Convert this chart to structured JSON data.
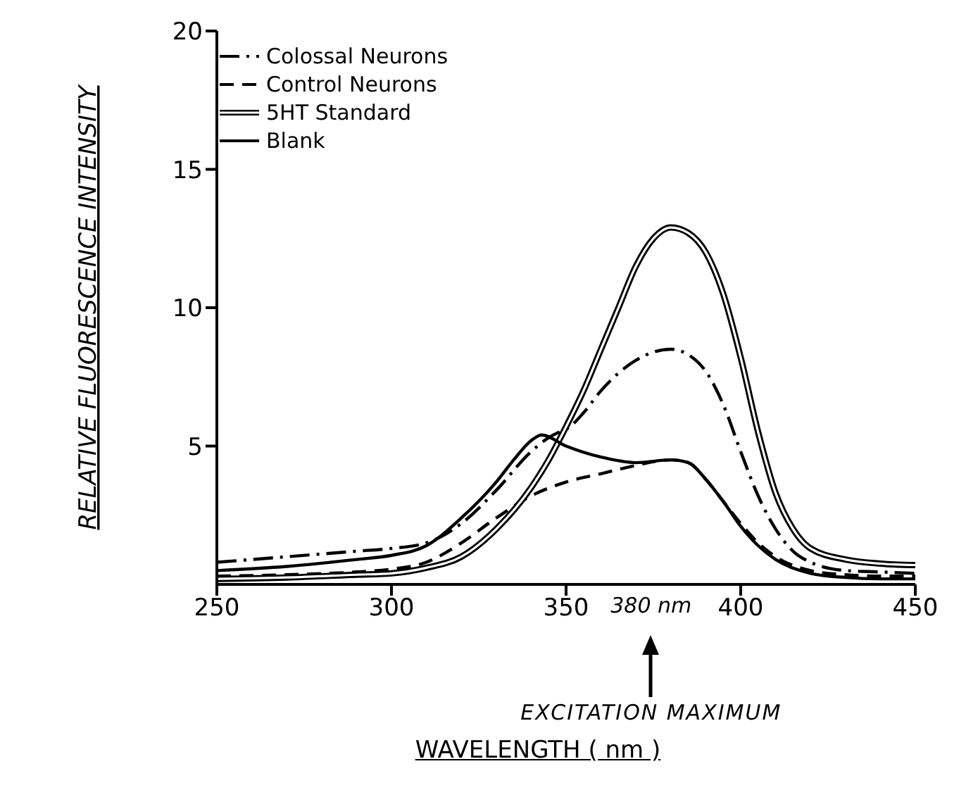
{
  "chart_data": {
    "type": "line",
    "xlabel": "WAVELENGTH ( nm )",
    "ylabel": "RELATIVE FLUORESCENCE INTENSITY",
    "xlim": [
      250,
      450
    ],
    "xticks": [
      250,
      300,
      350,
      400,
      450
    ],
    "ylim": [
      0,
      20
    ],
    "yticks": [
      5,
      10,
      15,
      20
    ],
    "legend": "top left",
    "grid": false,
    "marker": "none",
    "annotations": [
      "380 nm",
      "EXCITATION MAXIMUM"
    ],
    "series": [
      {
        "name": "Colossal Neurons",
        "color": "#000000",
        "line_style": "dashdot",
        "x": [
          250,
          270,
          290,
          300,
          310,
          320,
          330,
          340,
          345,
          348,
          350,
          355,
          360,
          370,
          380,
          385,
          390,
          395,
          400,
          405,
          410,
          415,
          420,
          430,
          440,
          450
        ],
        "values": [
          0.8,
          1.0,
          1.2,
          1.3,
          1.5,
          2.2,
          3.4,
          4.8,
          5.3,
          5.5,
          5.6,
          6.2,
          7.0,
          8.1,
          8.5,
          8.3,
          7.7,
          6.5,
          4.8,
          3.2,
          2.0,
          1.2,
          0.8,
          0.5,
          0.45,
          0.4
        ]
      },
      {
        "name": "Control Neurons",
        "color": "#000000",
        "line_style": "dashed",
        "x": [
          250,
          270,
          290,
          300,
          310,
          320,
          330,
          340,
          350,
          360,
          370,
          380,
          385,
          390,
          395,
          400,
          405,
          410,
          420,
          430,
          440,
          450
        ],
        "values": [
          0.3,
          0.35,
          0.45,
          0.55,
          0.8,
          1.5,
          2.4,
          3.2,
          3.7,
          4.0,
          4.3,
          4.5,
          4.4,
          3.8,
          3.0,
          2.2,
          1.5,
          1.0,
          0.5,
          0.35,
          0.3,
          0.3
        ]
      },
      {
        "name": "5HT Standard",
        "color": "#000000",
        "x": [
          250,
          270,
          290,
          300,
          310,
          320,
          330,
          340,
          345,
          350,
          355,
          360,
          365,
          370,
          375,
          380,
          385,
          390,
          395,
          400,
          405,
          410,
          415,
          420,
          430,
          440,
          450
        ],
        "values": [
          0.2,
          0.25,
          0.35,
          0.4,
          0.6,
          1.0,
          2.0,
          3.5,
          4.5,
          5.7,
          7.0,
          8.5,
          10.0,
          11.5,
          12.5,
          12.9,
          12.7,
          12.0,
          10.5,
          8.2,
          5.5,
          3.3,
          2.0,
          1.3,
          0.9,
          0.75,
          0.7
        ]
      },
      {
        "name": "Blank",
        "color": "#000000",
        "line_style": "solid",
        "x": [
          250,
          270,
          290,
          300,
          310,
          320,
          330,
          335,
          340,
          343,
          350,
          360,
          370,
          380,
          385,
          390,
          395,
          400,
          405,
          410,
          420,
          430,
          440,
          450
        ],
        "values": [
          0.5,
          0.65,
          0.9,
          1.05,
          1.4,
          2.4,
          3.7,
          4.5,
          5.2,
          5.4,
          5.0,
          4.6,
          4.4,
          4.5,
          4.4,
          3.8,
          3.0,
          2.1,
          1.4,
          0.9,
          0.4,
          0.25,
          0.2,
          0.2
        ]
      }
    ]
  }
}
